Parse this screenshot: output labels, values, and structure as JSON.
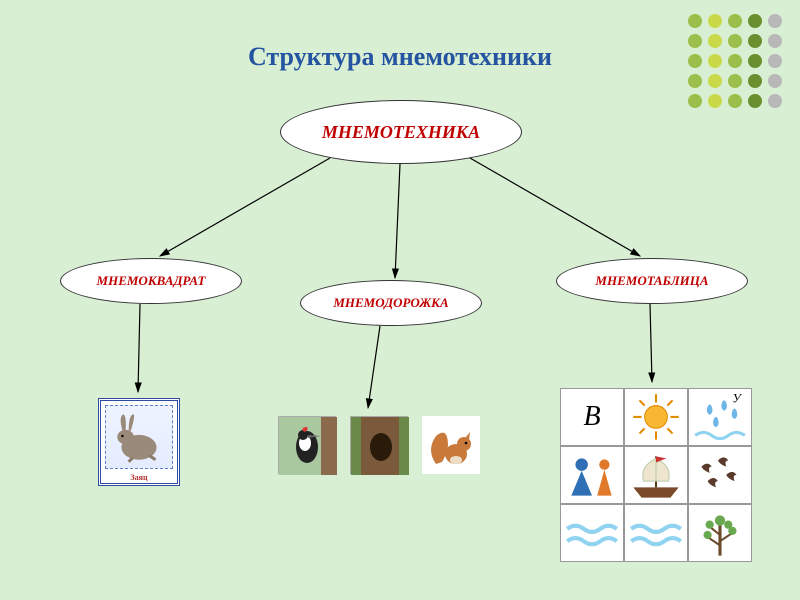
{
  "background_color": "#d8efd4",
  "title": {
    "text": "Структура мнемотехники",
    "color": "#2554a0",
    "fontsize": 26
  },
  "dot_grid": {
    "rows": 5,
    "cols": 5,
    "colors_by_column": [
      "#9bbf4a",
      "#c9d94a",
      "#9bbf4a",
      "#6a8f2f",
      "#b8b8b8"
    ]
  },
  "nodes": {
    "root": {
      "label": "МНЕМОТЕХНИКА",
      "color": "#c00000"
    },
    "left": {
      "label": "МНЕМОКВАДРАТ",
      "color": "#c00000"
    },
    "middle": {
      "label": "МНЕМОДОРОЖКА",
      "color": "#c00000"
    },
    "right": {
      "label": "МНЕМОТАБЛИЦА",
      "color": "#c00000"
    }
  },
  "mnemo_square": {
    "caption": "Заяц",
    "frame_color": "#2b4aa0"
  },
  "mnemo_table": {
    "cells": [
      {
        "type": "letter",
        "value": "В"
      },
      {
        "type": "icon",
        "value": "sun"
      },
      {
        "type": "icon",
        "value": "rain",
        "corner_letter": "У"
      },
      {
        "type": "icon",
        "value": "figures"
      },
      {
        "type": "icon",
        "value": "ship"
      },
      {
        "type": "icon",
        "value": "birds"
      },
      {
        "type": "icon",
        "value": "water"
      },
      {
        "type": "icon",
        "value": "water"
      },
      {
        "type": "icon",
        "value": "tree"
      }
    ]
  },
  "table_colors": {
    "sun_fill": "#f7b733",
    "sun_stroke": "#e08a00",
    "water": "#8fd3f0",
    "ship_sail": "#eee6cc",
    "ship_hull": "#7a4a2a",
    "fig_blue": "#2f6fb5",
    "fig_orange": "#e07a2a",
    "tree_trunk": "#6b4a2a",
    "tree_crown": "#6aa84f",
    "bird": "#5a3a2a",
    "rain_drop": "#6fb6e8"
  }
}
